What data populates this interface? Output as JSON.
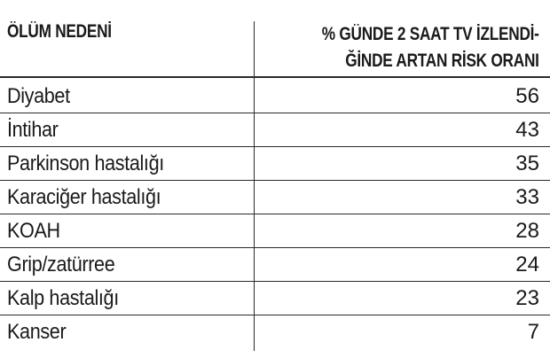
{
  "chart_data": {
    "type": "table",
    "columns": [
      "ÖLÜM NEDENİ",
      "% GÜNDE 2 SAAT TV İZLENDİ-",
      "ĞİNDE ARTAN RİSK ORANI"
    ],
    "header": {
      "col1": "ÖLÜM NEDENİ",
      "col2_line1": "% GÜNDE 2 SAAT TV İZLENDİ-",
      "col2_line2": "ĞİNDE ARTAN RİSK ORANI"
    },
    "rows": [
      {
        "cause": "Diyabet",
        "value": 56
      },
      {
        "cause": "İntihar",
        "value": 43
      },
      {
        "cause": "Parkinson hastalığı",
        "value": 35
      },
      {
        "cause": "Karaciğer hastalığı",
        "value": 33
      },
      {
        "cause": "KOAH",
        "value": 28
      },
      {
        "cause": "Grip/zatürree",
        "value": 24
      },
      {
        "cause": "Kalp hastalığı",
        "value": 23
      },
      {
        "cause": "Kanser",
        "value": 7
      }
    ]
  }
}
